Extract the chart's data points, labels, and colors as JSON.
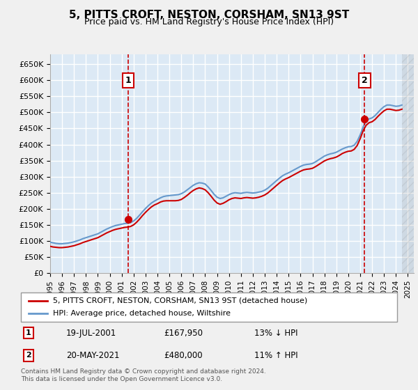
{
  "title": "5, PITTS CROFT, NESTON, CORSHAM, SN13 9ST",
  "subtitle": "Price paid vs. HM Land Registry's House Price Index (HPI)",
  "background_color": "#dce9f5",
  "plot_bg_color": "#dce9f5",
  "grid_color": "#ffffff",
  "xlabel": "",
  "ylabel": "",
  "ylim": [
    0,
    680000
  ],
  "xlim_start": 1995.0,
  "xlim_end": 2025.5,
  "yticks": [
    0,
    50000,
    100000,
    150000,
    200000,
    250000,
    300000,
    350000,
    400000,
    450000,
    500000,
    550000,
    600000,
    650000
  ],
  "ytick_labels": [
    "£0",
    "£50K",
    "£100K",
    "£150K",
    "£200K",
    "£250K",
    "£300K",
    "£350K",
    "£400K",
    "£450K",
    "£500K",
    "£550K",
    "£600K",
    "£650K"
  ],
  "xtick_years": [
    1995,
    1996,
    1997,
    1998,
    1999,
    2000,
    2001,
    2002,
    2003,
    2004,
    2005,
    2006,
    2007,
    2008,
    2009,
    2010,
    2011,
    2012,
    2013,
    2014,
    2015,
    2016,
    2017,
    2018,
    2019,
    2020,
    2021,
    2022,
    2023,
    2024,
    2025
  ],
  "hpi_line_color": "#6699cc",
  "price_line_color": "#cc0000",
  "marker1_date": 2001.54,
  "marker1_price": 167950,
  "marker1_label": "1",
  "marker2_date": 2021.38,
  "marker2_price": 480000,
  "marker2_label": "2",
  "legend_entry1": "5, PITTS CROFT, NESTON, CORSHAM, SN13 9ST (detached house)",
  "legend_entry2": "HPI: Average price, detached house, Wiltshire",
  "annotation1_num": "1",
  "annotation1_date": "19-JUL-2001",
  "annotation1_price": "£167,950",
  "annotation1_hpi": "13% ↓ HPI",
  "annotation2_num": "2",
  "annotation2_date": "20-MAY-2021",
  "annotation2_price": "£480,000",
  "annotation2_hpi": "11% ↑ HPI",
  "footer": "Contains HM Land Registry data © Crown copyright and database right 2024.\nThis data is licensed under the Open Government Licence v3.0.",
  "hpi_data_x": [
    1995.0,
    1995.25,
    1995.5,
    1995.75,
    1996.0,
    1996.25,
    1996.5,
    1996.75,
    1997.0,
    1997.25,
    1997.5,
    1997.75,
    1998.0,
    1998.25,
    1998.5,
    1998.75,
    1999.0,
    1999.25,
    1999.5,
    1999.75,
    2000.0,
    2000.25,
    2000.5,
    2000.75,
    2001.0,
    2001.25,
    2001.5,
    2001.75,
    2002.0,
    2002.25,
    2002.5,
    2002.75,
    2003.0,
    2003.25,
    2003.5,
    2003.75,
    2004.0,
    2004.25,
    2004.5,
    2004.75,
    2005.0,
    2005.25,
    2005.5,
    2005.75,
    2006.0,
    2006.25,
    2006.5,
    2006.75,
    2007.0,
    2007.25,
    2007.5,
    2007.75,
    2008.0,
    2008.25,
    2008.5,
    2008.75,
    2009.0,
    2009.25,
    2009.5,
    2009.75,
    2010.0,
    2010.25,
    2010.5,
    2010.75,
    2011.0,
    2011.25,
    2011.5,
    2011.75,
    2012.0,
    2012.25,
    2012.5,
    2012.75,
    2013.0,
    2013.25,
    2013.5,
    2013.75,
    2014.0,
    2014.25,
    2014.5,
    2014.75,
    2015.0,
    2015.25,
    2015.5,
    2015.75,
    2016.0,
    2016.25,
    2016.5,
    2016.75,
    2017.0,
    2017.25,
    2017.5,
    2017.75,
    2018.0,
    2018.25,
    2018.5,
    2018.75,
    2019.0,
    2019.25,
    2019.5,
    2019.75,
    2020.0,
    2020.25,
    2020.5,
    2020.75,
    2021.0,
    2021.25,
    2021.5,
    2021.75,
    2022.0,
    2022.25,
    2022.5,
    2022.75,
    2023.0,
    2023.25,
    2023.5,
    2023.75,
    2024.0,
    2024.25,
    2024.5
  ],
  "hpi_data_y": [
    96000,
    94000,
    92000,
    91000,
    91000,
    92000,
    93000,
    95000,
    97000,
    100000,
    103000,
    107000,
    110000,
    113000,
    116000,
    119000,
    122000,
    127000,
    132000,
    137000,
    141000,
    145000,
    148000,
    150000,
    152000,
    154000,
    155000,
    157000,
    162000,
    170000,
    180000,
    191000,
    201000,
    210000,
    218000,
    224000,
    229000,
    234000,
    238000,
    240000,
    241000,
    242000,
    243000,
    244000,
    247000,
    252000,
    259000,
    266000,
    273000,
    278000,
    281000,
    280000,
    277000,
    268000,
    257000,
    245000,
    236000,
    232000,
    234000,
    239000,
    244000,
    248000,
    250000,
    249000,
    248000,
    250000,
    251000,
    250000,
    249000,
    250000,
    252000,
    254000,
    258000,
    264000,
    272000,
    280000,
    288000,
    296000,
    303000,
    308000,
    312000,
    317000,
    322000,
    327000,
    332000,
    336000,
    338000,
    339000,
    341000,
    346000,
    352000,
    358000,
    364000,
    368000,
    371000,
    373000,
    376000,
    381000,
    386000,
    390000,
    393000,
    394000,
    398000,
    410000,
    430000,
    455000,
    472000,
    480000,
    483000,
    490000,
    500000,
    510000,
    518000,
    523000,
    523000,
    521000,
    519000,
    520000,
    523000
  ],
  "price_data_x": [
    1995.0,
    1995.25,
    1995.5,
    1995.75,
    1996.0,
    1996.25,
    1996.5,
    1996.75,
    1997.0,
    1997.25,
    1997.5,
    1997.75,
    1998.0,
    1998.25,
    1998.5,
    1998.75,
    1999.0,
    1999.25,
    1999.5,
    1999.75,
    2000.0,
    2000.25,
    2000.5,
    2000.75,
    2001.0,
    2001.25,
    2001.5,
    2001.75,
    2002.0,
    2002.25,
    2002.5,
    2002.75,
    2003.0,
    2003.25,
    2003.5,
    2003.75,
    2004.0,
    2004.25,
    2004.5,
    2004.75,
    2005.0,
    2005.25,
    2005.5,
    2005.75,
    2006.0,
    2006.25,
    2006.5,
    2006.75,
    2007.0,
    2007.25,
    2007.5,
    2007.75,
    2008.0,
    2008.25,
    2008.5,
    2008.75,
    2009.0,
    2009.25,
    2009.5,
    2009.75,
    2010.0,
    2010.25,
    2010.5,
    2010.75,
    2011.0,
    2011.25,
    2011.5,
    2011.75,
    2012.0,
    2012.25,
    2012.5,
    2012.75,
    2013.0,
    2013.25,
    2013.5,
    2013.75,
    2014.0,
    2014.25,
    2014.5,
    2014.75,
    2015.0,
    2015.25,
    2015.5,
    2015.75,
    2016.0,
    2016.25,
    2016.5,
    2016.75,
    2017.0,
    2017.25,
    2017.5,
    2017.75,
    2018.0,
    2018.25,
    2018.5,
    2018.75,
    2019.0,
    2019.25,
    2019.5,
    2019.75,
    2020.0,
    2020.25,
    2020.5,
    2020.75,
    2021.0,
    2021.25,
    2021.5,
    2021.75,
    2022.0,
    2022.25,
    2022.5,
    2022.75,
    2023.0,
    2023.25,
    2023.5,
    2023.75,
    2024.0,
    2024.25,
    2024.5
  ],
  "price_data_y": [
    83000,
    81000,
    80000,
    79000,
    79000,
    80000,
    81000,
    83000,
    85000,
    88000,
    91000,
    95000,
    98000,
    101000,
    104000,
    107000,
    110000,
    115000,
    120000,
    125000,
    129000,
    133000,
    136000,
    138000,
    140000,
    142000,
    143000,
    145000,
    150000,
    158000,
    168000,
    179000,
    189000,
    198000,
    206000,
    212000,
    216000,
    221000,
    224000,
    225000,
    225000,
    225000,
    225000,
    226000,
    229000,
    235000,
    242000,
    250000,
    257000,
    262000,
    265000,
    263000,
    259000,
    250000,
    239000,
    227000,
    218000,
    214000,
    217000,
    222000,
    228000,
    232000,
    234000,
    233000,
    232000,
    234000,
    235000,
    234000,
    233000,
    234000,
    236000,
    239000,
    243000,
    249000,
    257000,
    265000,
    273000,
    281000,
    288000,
    293000,
    297000,
    302000,
    307000,
    312000,
    317000,
    321000,
    323000,
    324000,
    326000,
    331000,
    337000,
    343000,
    349000,
    353000,
    356000,
    358000,
    361000,
    366000,
    372000,
    376000,
    379000,
    380000,
    385000,
    397000,
    418000,
    443000,
    460000,
    468000,
    471000,
    478000,
    488000,
    497000,
    505000,
    510000,
    510000,
    508000,
    506000,
    507000,
    510000
  ],
  "hatching_start": 2024.5,
  "hatching_end": 2025.5
}
